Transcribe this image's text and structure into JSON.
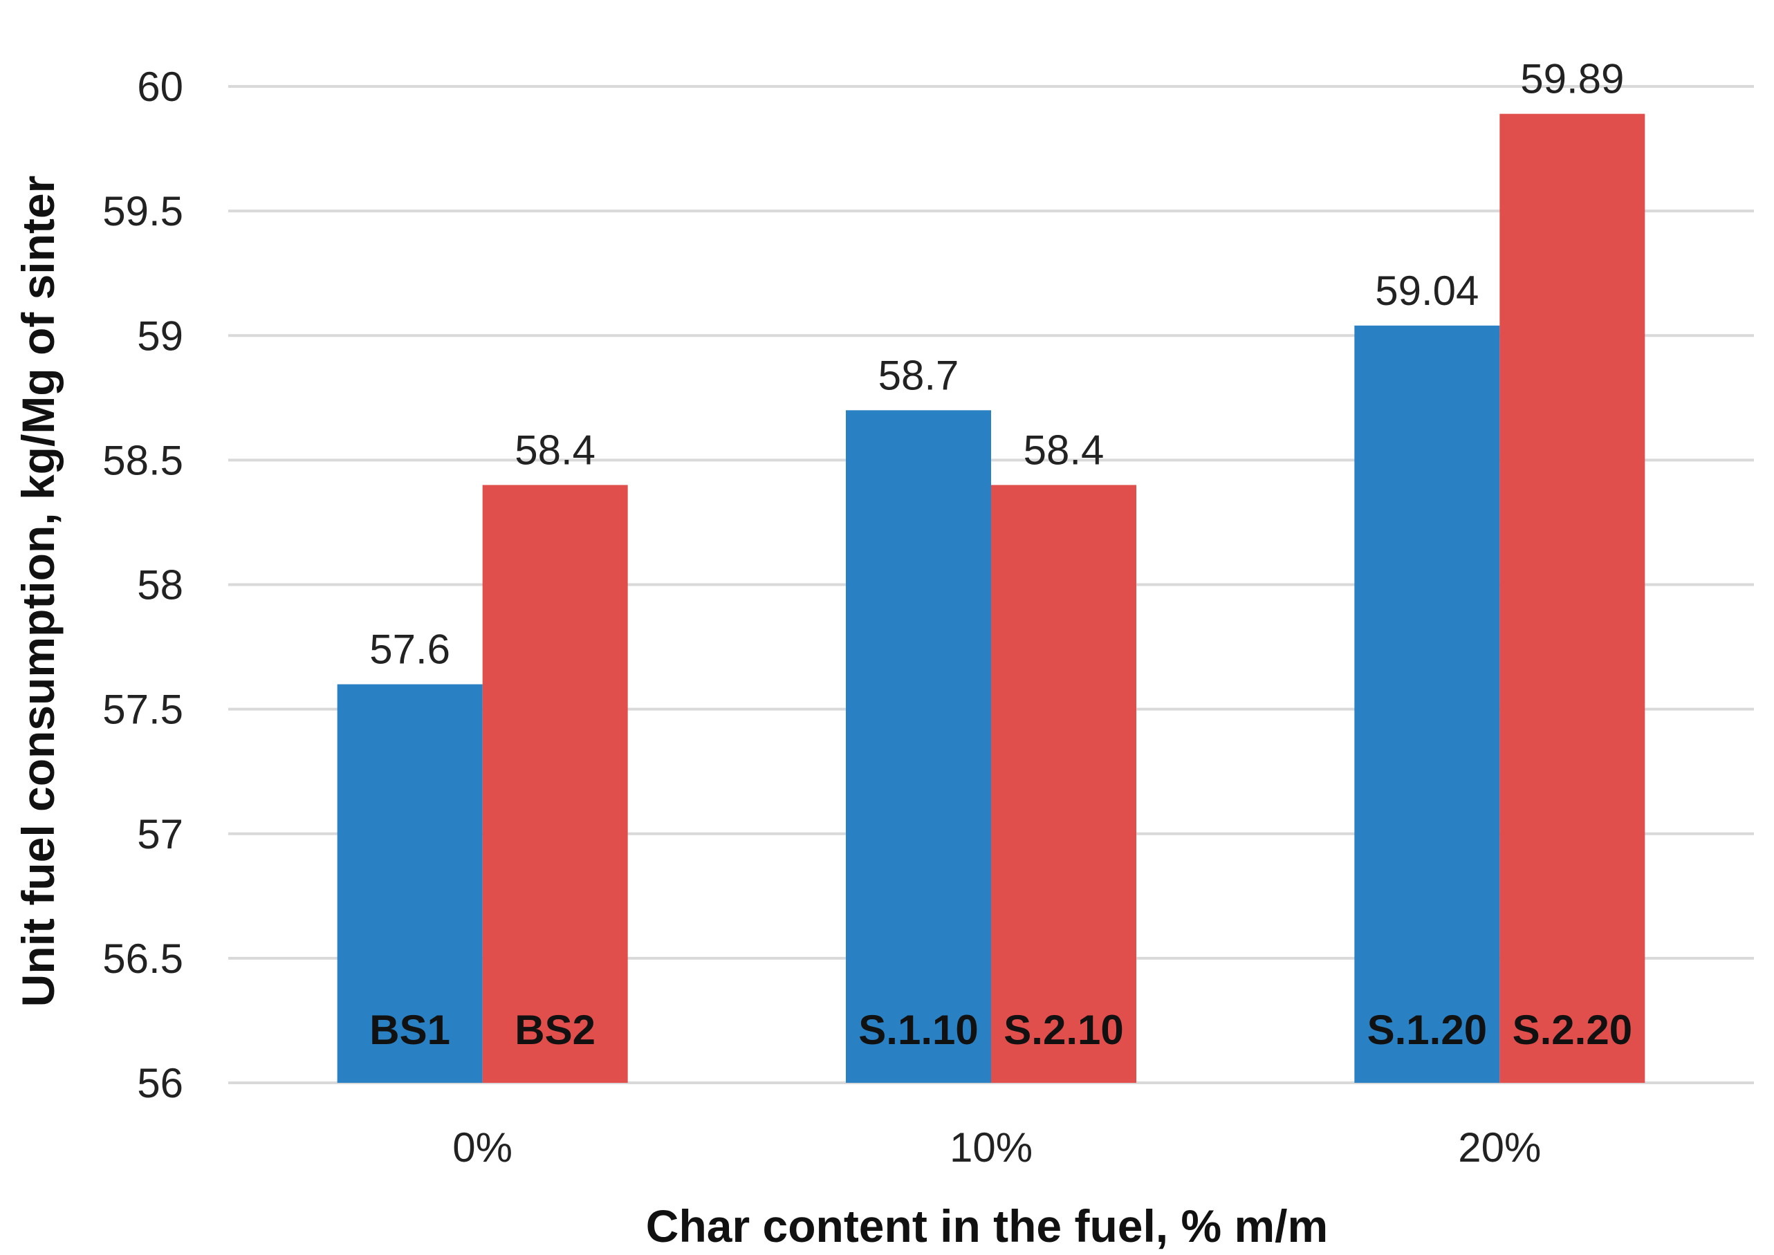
{
  "chart_data": {
    "type": "bar",
    "categories": [
      "0%",
      "10%",
      "20%"
    ],
    "series": [
      {
        "values": [
          57.6,
          58.7,
          59.04
        ],
        "labels": [
          "BS1",
          "S.1.10",
          "S.1.20"
        ],
        "color": "#2980C2"
      },
      {
        "values": [
          58.4,
          58.4,
          59.89
        ],
        "labels": [
          "BS2",
          "S.2.10",
          "S.2.20"
        ],
        "color": "#E04F4C"
      }
    ],
    "xlabel": "Char content in the fuel, % m/m",
    "ylabel": "Unit fuel consumption,  kg/Mg of sinter",
    "ylim": [
      56,
      60
    ],
    "yticks": [
      "56",
      "56.5",
      "57",
      "57.5",
      "58",
      "58.5",
      "59",
      "59.5",
      "60"
    ],
    "ytick_values": [
      56,
      56.5,
      57,
      57.5,
      58,
      58.5,
      59,
      59.5,
      60
    ],
    "grid": true,
    "gridColor": "#D9D9D9"
  }
}
